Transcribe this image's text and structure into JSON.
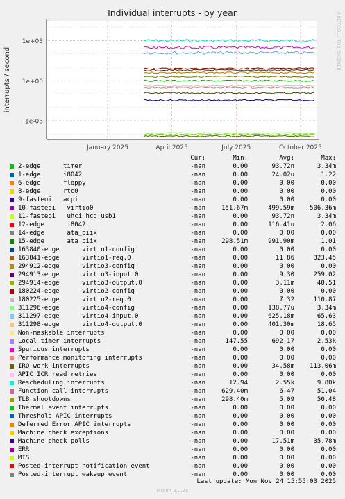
{
  "chart_data": {
    "type": "line",
    "title": "Individual interrupts - by year",
    "ylabel": "interrupts / second",
    "side_label": "RRDTOOL / TOBI OETIKER",
    "y_scale": "log",
    "ylim": [
      4e-05,
      30000
    ],
    "y_ticks": [
      {
        "value": 1000,
        "label": "1e+03"
      },
      {
        "value": 1,
        "label": "1e+00"
      },
      {
        "value": 0.001,
        "label": "1e-03"
      }
    ],
    "x_ticks": [
      "January 2025",
      "April 2025",
      "July 2025",
      "October 2025"
    ],
    "grid": true,
    "series_bands": [
      {
        "color": "#00e5cc",
        "value": 1000
      },
      {
        "color": "#cc00cc",
        "value": 300
      },
      {
        "color": "#55aaff",
        "value": 120
      },
      {
        "color": "#880000",
        "value": 8
      },
      {
        "color": "#5a2a00",
        "value": 6
      },
      {
        "color": "#aa7700",
        "value": 4
      },
      {
        "color": "#667700",
        "value": 2
      },
      {
        "color": "#00aa00",
        "value": 1
      },
      {
        "color": "#ffaaaa",
        "value": 0.4
      },
      {
        "color": "#999999",
        "value": 0.3
      },
      {
        "color": "#444400",
        "value": 0.12
      },
      {
        "color": "#000088",
        "value": 0.035
      },
      {
        "color": "#88ee44",
        "value": 0.00012
      },
      {
        "color": "#77cc00",
        "value": 9e-05
      },
      {
        "color": "#556600",
        "value": 7e-05
      }
    ]
  },
  "legend": {
    "headers": {
      "cur": "Cur:",
      "min": "Min:",
      "avg": "Avg:",
      "max": "Max:"
    },
    "rows": [
      {
        "label": "2-edge      timer",
        "color": "#00cc00",
        "cur": "-nan",
        "min": "0.00",
        "avg": "93.72n",
        "max": "3.34m"
      },
      {
        "label": "1-edge      i8042",
        "color": "#0066b3",
        "cur": "-nan",
        "min": "0.00",
        "avg": "24.02u",
        "max": "1.22"
      },
      {
        "label": "6-edge      floppy",
        "color": "#ff8000",
        "cur": "-nan",
        "min": "0.00",
        "avg": "0.00",
        "max": "0.00"
      },
      {
        "label": "8-edge      rtc0",
        "color": "#ffcc00",
        "cur": "-nan",
        "min": "0.00",
        "avg": "0.00",
        "max": "0.00"
      },
      {
        "label": "9-fasteoi   acpi",
        "color": "#330099",
        "cur": "-nan",
        "min": "0.00",
        "avg": "0.00",
        "max": "0.00"
      },
      {
        "label": "10-fasteoi   virtio0",
        "color": "#990099",
        "cur": "-nan",
        "min": "151.67m",
        "avg": "499.59m",
        "max": "506.36m"
      },
      {
        "label": "11-fasteoi   uhci_hcd:usb1",
        "color": "#ccff00",
        "cur": "-nan",
        "min": "0.00",
        "avg": "93.72n",
        "max": "3.34m"
      },
      {
        "label": "12-edge      i8042",
        "color": "#ff0000",
        "cur": "-nan",
        "min": "0.00",
        "avg": "116.41u",
        "max": "2.06"
      },
      {
        "label": "14-edge      ata_piix",
        "color": "#808080",
        "cur": "-nan",
        "min": "0.00",
        "avg": "0.00",
        "max": "0.00"
      },
      {
        "label": "15-edge      ata_piix",
        "color": "#008f00",
        "cur": "-nan",
        "min": "298.51m",
        "avg": "991.90m",
        "max": "1.01"
      },
      {
        "label": "163840-edge      virtio1-config",
        "color": "#00487d",
        "cur": "-nan",
        "min": "0.00",
        "avg": "0.00",
        "max": "0.00"
      },
      {
        "label": "163841-edge      virtio1-req.0",
        "color": "#b35a00",
        "cur": "-nan",
        "min": "0.00",
        "avg": "11.86",
        "max": "323.45"
      },
      {
        "label": "294912-edge      virtio3-config",
        "color": "#b38f00",
        "cur": "-nan",
        "min": "0.00",
        "avg": "0.00",
        "max": "0.00"
      },
      {
        "label": "294913-edge      virtio3-input.0",
        "color": "#6b006b",
        "cur": "-nan",
        "min": "0.00",
        "avg": "9.30",
        "max": "259.02"
      },
      {
        "label": "294914-edge      virtio3-output.0",
        "color": "#8fb300",
        "cur": "-nan",
        "min": "0.00",
        "avg": "3.11m",
        "max": "40.51"
      },
      {
        "label": "180224-edge      virtio2-config",
        "color": "#b30000",
        "cur": "-nan",
        "min": "0.00",
        "avg": "0.00",
        "max": "0.00"
      },
      {
        "label": "180225-edge      virtio2-req.0",
        "color": "#bebebe",
        "cur": "-nan",
        "min": "0.00",
        "avg": "7.32",
        "max": "110.87"
      },
      {
        "label": "311296-edge      virtio4-config",
        "color": "#80ff80",
        "cur": "-nan",
        "min": "0.00",
        "avg": "138.77u",
        "max": "3.34m"
      },
      {
        "label": "311297-edge      virtio4-input.0",
        "color": "#80c9ff",
        "cur": "-nan",
        "min": "0.00",
        "avg": "625.18m",
        "max": "65.63"
      },
      {
        "label": "311298-edge      virtio4-output.0",
        "color": "#ffc080",
        "cur": "-nan",
        "min": "0.00",
        "avg": "401.30m",
        "max": "18.65"
      },
      {
        "label": "Non-maskable interrupts",
        "color": "#ffe680",
        "cur": "-nan",
        "min": "0.00",
        "avg": "0.00",
        "max": "0.00"
      },
      {
        "label": "Local timer interrupts",
        "color": "#aa80ff",
        "cur": "-nan",
        "min": "147.55",
        "avg": "692.17",
        "max": "2.53k"
      },
      {
        "label": "Spurious interrupts",
        "color": "#ee00cc",
        "cur": "-nan",
        "min": "0.00",
        "avg": "0.00",
        "max": "0.00"
      },
      {
        "label": "Performance monitoring interrupts",
        "color": "#ff8080",
        "cur": "-nan",
        "min": "0.00",
        "avg": "0.00",
        "max": "0.00"
      },
      {
        "label": "IRQ work interrupts",
        "color": "#666600",
        "cur": "-nan",
        "min": "0.00",
        "avg": "34.58m",
        "max": "113.06m"
      },
      {
        "label": "APIC ICR read retries",
        "color": "#ffbfff",
        "cur": "-nan",
        "min": "0.00",
        "avg": "0.00",
        "max": "0.00"
      },
      {
        "label": "Rescheduling interrupts",
        "color": "#00ffcc",
        "cur": "-nan",
        "min": "12.94",
        "avg": "2.55k",
        "max": "9.80k"
      },
      {
        "label": "Function call interrupts",
        "color": "#cc6699",
        "cur": "-nan",
        "min": "629.40m",
        "avg": "6.47",
        "max": "51.04"
      },
      {
        "label": "TLB shootdowns",
        "color": "#999900",
        "cur": "-nan",
        "min": "298.40m",
        "avg": "5.09",
        "max": "50.48"
      },
      {
        "label": "Thermal event interrupts",
        "color": "#00cc00",
        "cur": "-nan",
        "min": "0.00",
        "avg": "0.00",
        "max": "0.00"
      },
      {
        "label": "Threshold APIC interrupts",
        "color": "#0066b3",
        "cur": "-nan",
        "min": "0.00",
        "avg": "0.00",
        "max": "0.00"
      },
      {
        "label": "Deferred Error APIC interrupts",
        "color": "#ff8000",
        "cur": "-nan",
        "min": "0.00",
        "avg": "0.00",
        "max": "0.00"
      },
      {
        "label": "Machine check exceptions",
        "color": "#ffcc00",
        "cur": "-nan",
        "min": "0.00",
        "avg": "0.00",
        "max": "0.00"
      },
      {
        "label": "Machine check polls",
        "color": "#330099",
        "cur": "-nan",
        "min": "0.00",
        "avg": "17.51m",
        "max": "35.78m"
      },
      {
        "label": "ERR",
        "color": "#990099",
        "cur": "-nan",
        "min": "0.00",
        "avg": "0.00",
        "max": "0.00"
      },
      {
        "label": "MIS",
        "color": "#ccff00",
        "cur": "-nan",
        "min": "0.00",
        "avg": "0.00",
        "max": "0.00"
      },
      {
        "label": "Posted-interrupt notification event",
        "color": "#ff0000",
        "cur": "-nan",
        "min": "0.00",
        "avg": "0.00",
        "max": "0.00"
      },
      {
        "label": "Posted-interrupt wakeup event",
        "color": "#808080",
        "cur": "-nan",
        "min": "0.00",
        "avg": "0.00",
        "max": "0.00"
      }
    ]
  },
  "footer": {
    "last_update": "Last update: Mon Nov 24 15:55:03 2025",
    "version": "Munin 2.0.75"
  }
}
